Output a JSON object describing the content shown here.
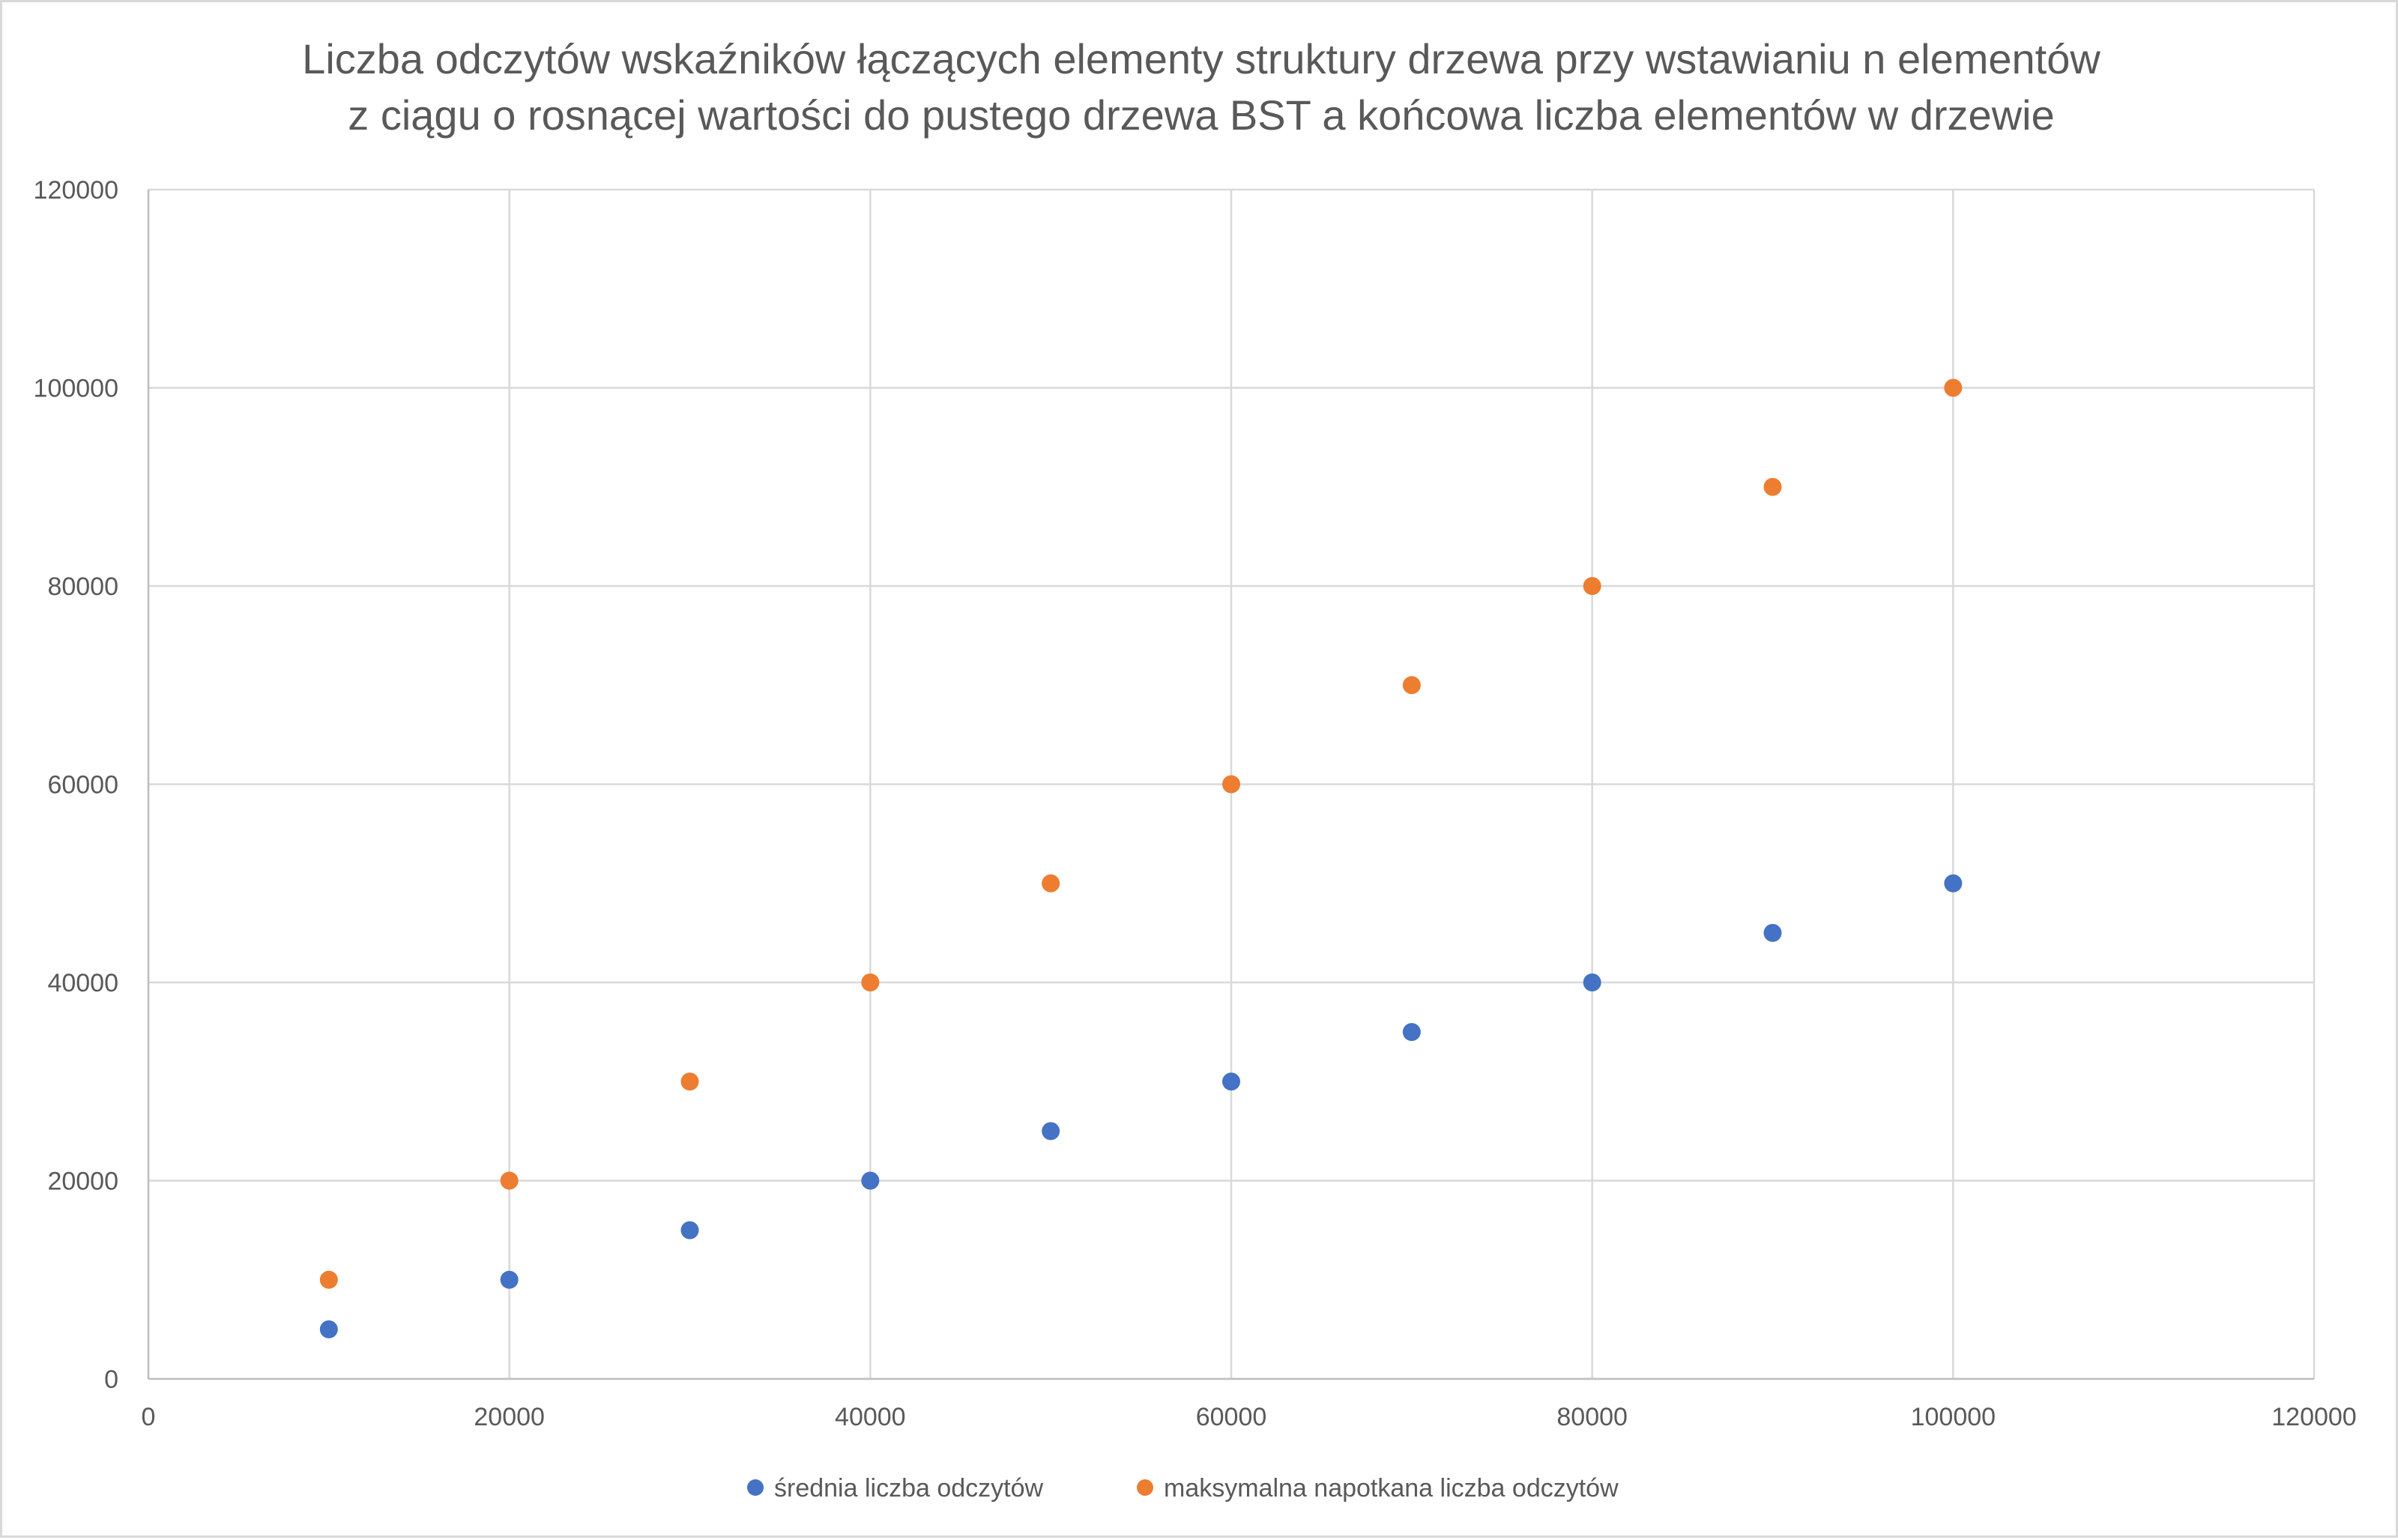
{
  "chart_data": {
    "type": "scatter",
    "title_lines": [
      "Liczba odczytów wskaźników łączących elementy struktury drzewa przy wstawianiu n elementów",
      "z ciągu o rosnącej wartości do pustego drzewa BST a końcowa liczba elementów w drzewie"
    ],
    "xlabel": "",
    "ylabel": "",
    "xlim": [
      0,
      120000
    ],
    "ylim": [
      0,
      120000
    ],
    "x_ticks": [
      "0",
      "20000",
      "40000",
      "60000",
      "80000",
      "100000",
      "120000"
    ],
    "y_ticks": [
      "0",
      "20000",
      "40000",
      "60000",
      "80000",
      "100000",
      "120000"
    ],
    "grid": true,
    "legend_position": "bottom",
    "series": [
      {
        "name": "średnia liczba odczytów",
        "color": "#4472c4",
        "points": [
          [
            10000,
            5000
          ],
          [
            20000,
            10000
          ],
          [
            30000,
            15000
          ],
          [
            40000,
            20000
          ],
          [
            50000,
            25000
          ],
          [
            60000,
            30000
          ],
          [
            70000,
            35000
          ],
          [
            80000,
            40000
          ],
          [
            90000,
            45000
          ],
          [
            100000,
            50000
          ]
        ]
      },
      {
        "name": "maksymalna napotkana liczba odczytów",
        "color": "#ed7d31",
        "points": [
          [
            10000,
            10000
          ],
          [
            20000,
            20000
          ],
          [
            30000,
            30000
          ],
          [
            40000,
            40000
          ],
          [
            50000,
            50000
          ],
          [
            60000,
            60000
          ],
          [
            70000,
            70000
          ],
          [
            80000,
            80000
          ],
          [
            90000,
            90000
          ],
          [
            100000,
            100000
          ]
        ]
      }
    ]
  }
}
